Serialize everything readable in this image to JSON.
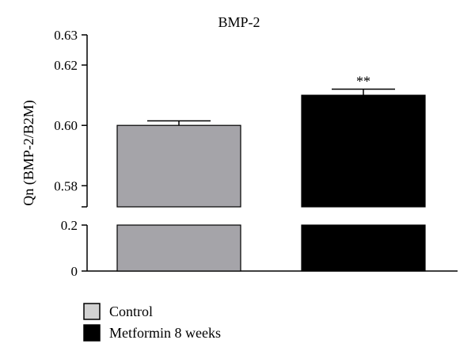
{
  "chart_data": {
    "type": "bar",
    "title": "BMP-2",
    "ylabel": "Qn (BMP-2/B2M)",
    "xlabel": "",
    "categories": [
      "Control",
      "Metformin 8 weeks"
    ],
    "values": [
      0.6,
      0.61
    ],
    "errors": [
      0.0015,
      0.002
    ],
    "significance": [
      "",
      "**"
    ],
    "axis_break": true,
    "upper_segment": {
      "ylim": [
        0.573,
        0.63
      ],
      "ticks": [
        "0.58",
        "0.60",
        "0.62",
        "0.63"
      ]
    },
    "lower_segment": {
      "ylim": [
        0,
        0.2
      ],
      "ticks": [
        "0",
        "0.2"
      ]
    },
    "colors": [
      "#a5a4a9",
      "#000000"
    ],
    "legend": {
      "position": "bottom-left",
      "items": [
        {
          "label": "Control",
          "color": "#d2d2d2"
        },
        {
          "label": "Metformin 8 weeks",
          "color": "#000000"
        }
      ]
    },
    "grid": false
  }
}
